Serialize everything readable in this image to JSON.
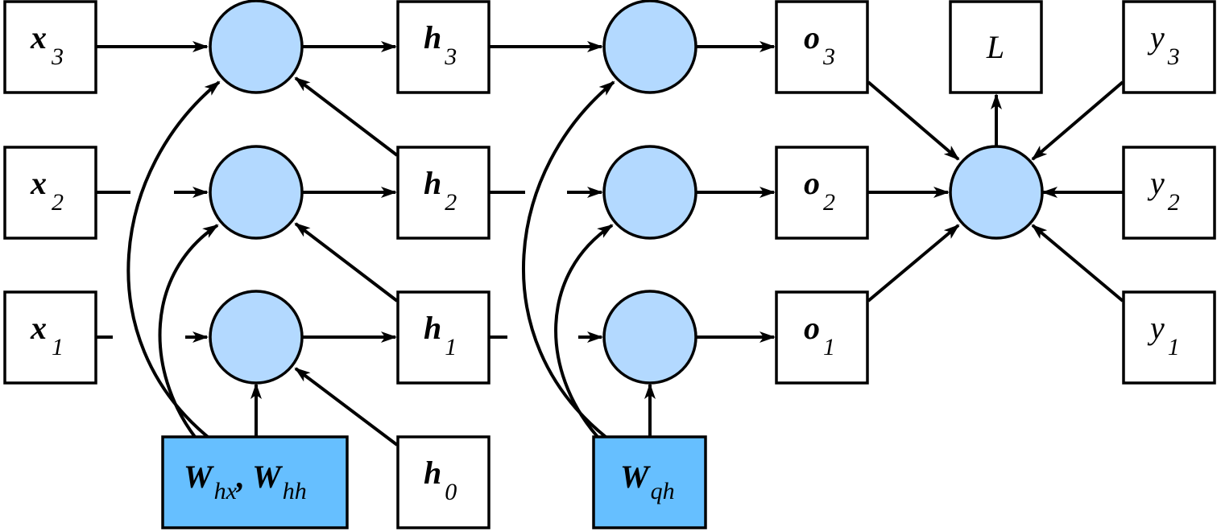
{
  "diagram": {
    "labels": {
      "x3": {
        "main": "x",
        "sub": "3"
      },
      "x2": {
        "main": "x",
        "sub": "2"
      },
      "x1": {
        "main": "x",
        "sub": "1"
      },
      "h3": {
        "main": "h",
        "sub": "3"
      },
      "h2": {
        "main": "h",
        "sub": "2"
      },
      "h1": {
        "main": "h",
        "sub": "1"
      },
      "h0": {
        "main": "h",
        "sub": "0"
      },
      "o3": {
        "main": "o",
        "sub": "3"
      },
      "o2": {
        "main": "o",
        "sub": "2"
      },
      "o1": {
        "main": "o",
        "sub": "1"
      },
      "y3": {
        "main": "y",
        "sub": "3"
      },
      "y2": {
        "main": "y",
        "sub": "2"
      },
      "y1": {
        "main": "y",
        "sub": "1"
      },
      "L": {
        "main": "L"
      },
      "w_hidden": {
        "main1": "W",
        "sub1": "hx",
        "sep": ", ",
        "main2": "W",
        "sub2": "hh"
      },
      "w_output": {
        "main": "W",
        "sub": "qh"
      }
    },
    "colors": {
      "node_fill": "#b3d9ff",
      "param_fill": "#66bfff",
      "box_fill": "#ffffff",
      "stroke": "#000000"
    }
  }
}
